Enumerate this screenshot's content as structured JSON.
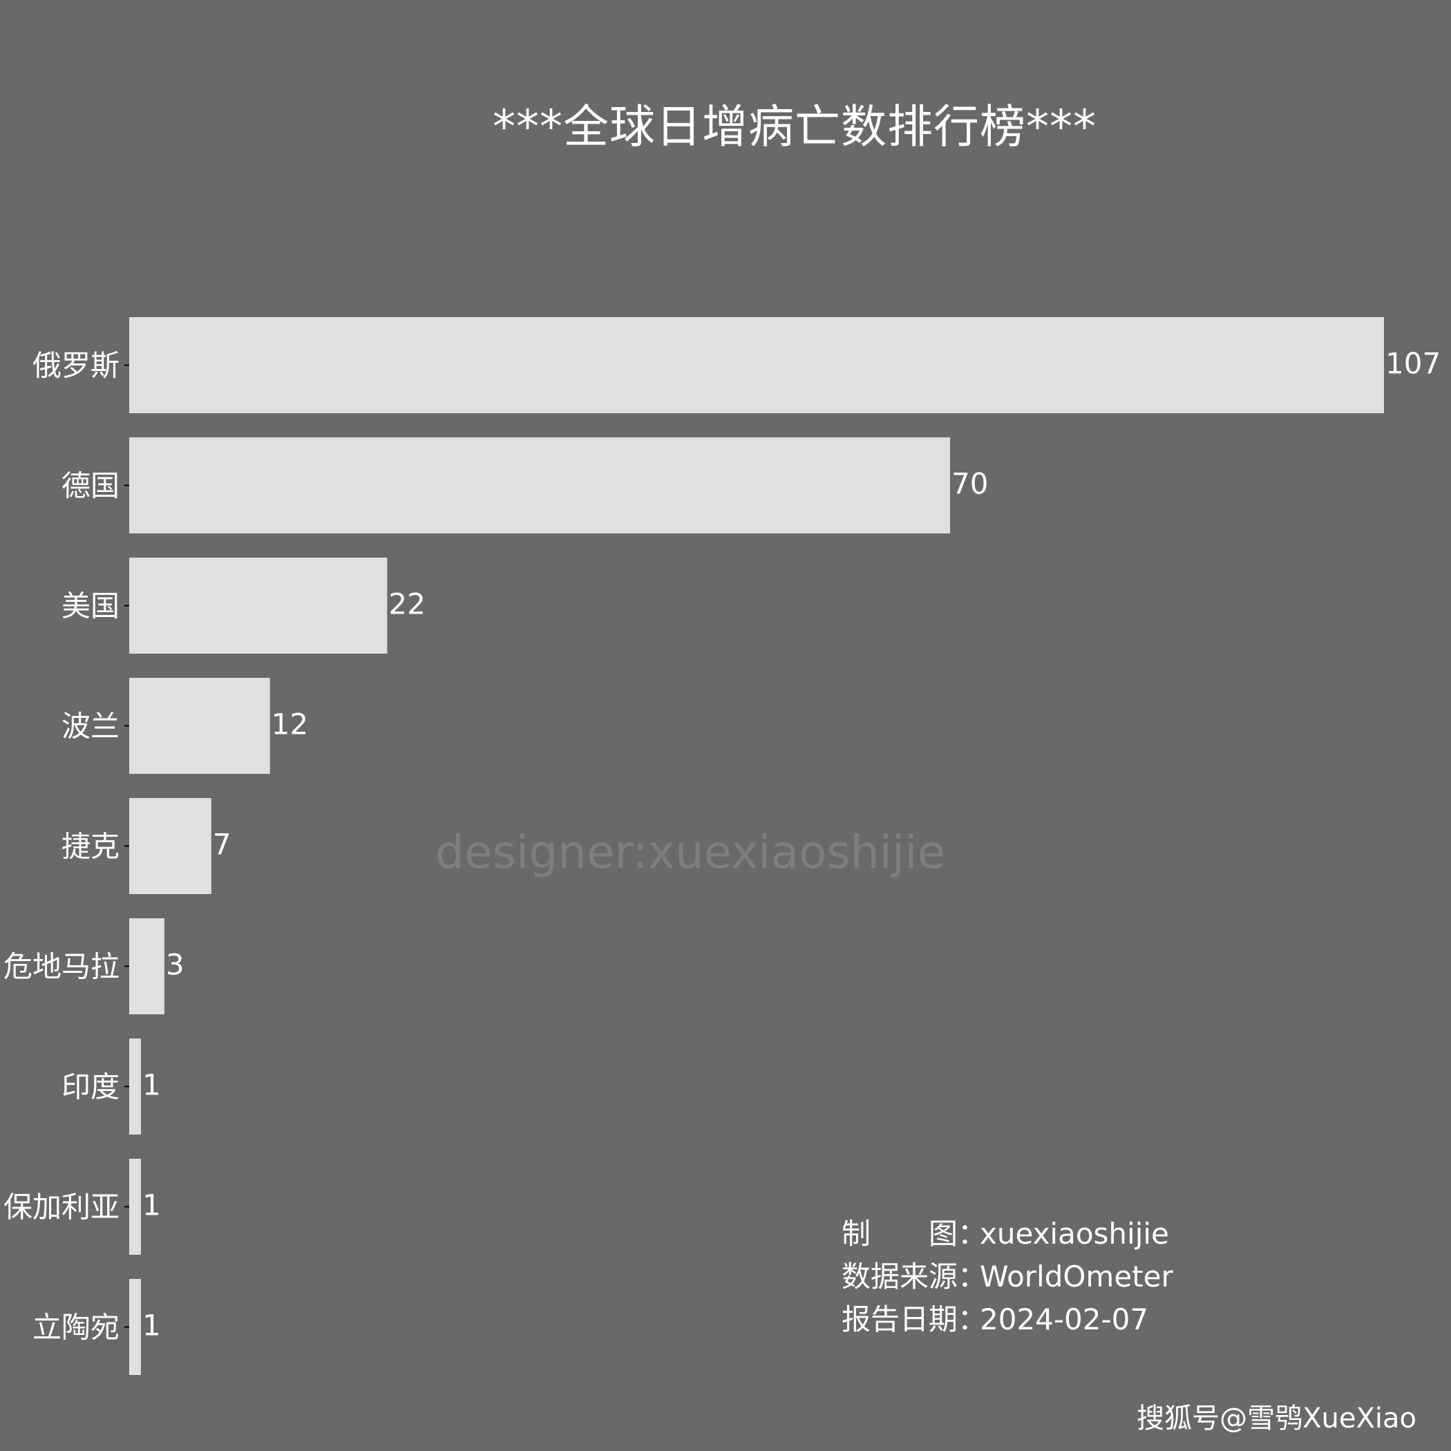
{
  "title": "***全球日增病亡数排行榜***",
  "watermark": "designer:xuexiaoshijie",
  "credits": [
    {
      "label": "制　　图：",
      "value": "xuexiaoshijie"
    },
    {
      "label": "数据来源：",
      "value": "WorldOmeter"
    },
    {
      "label": "报告日期：",
      "value": "2024-02-07"
    }
  ],
  "footer_watermark": "搜狐号@雪鸮XueXiao",
  "colors": {
    "background": "#696969",
    "bar": "#e0e0e0",
    "text": "#ffffff"
  },
  "chart_data": {
    "type": "bar",
    "orientation": "horizontal",
    "title": "***全球日增病亡数排行榜***",
    "categories": [
      "俄罗斯",
      "德国",
      "美国",
      "波兰",
      "捷克",
      "危地马拉",
      "印度",
      "保加利亚",
      "立陶宛"
    ],
    "values": [
      107,
      70,
      22,
      12,
      7,
      3,
      1,
      1,
      1
    ],
    "xlim": [
      0,
      107
    ],
    "grid": false,
    "data_labels": true
  }
}
